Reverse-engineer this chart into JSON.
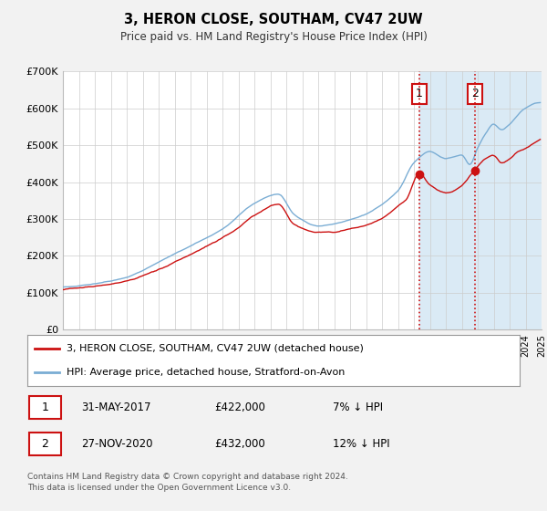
{
  "title": "3, HERON CLOSE, SOUTHAM, CV47 2UW",
  "subtitle": "Price paid vs. HM Land Registry's House Price Index (HPI)",
  "ylim": [
    0,
    700000
  ],
  "yticks": [
    0,
    100000,
    200000,
    300000,
    400000,
    500000,
    600000,
    700000
  ],
  "ytick_labels": [
    "£0",
    "£100K",
    "£200K",
    "£300K",
    "£400K",
    "£500K",
    "£600K",
    "£700K"
  ],
  "hpi_color": "#7aadd4",
  "price_color": "#cc1111",
  "event1_year": 2017.37,
  "event2_year": 2020.9,
  "event1_price": 422000,
  "event2_price": 432000,
  "legend1": "3, HERON CLOSE, SOUTHAM, CV47 2UW (detached house)",
  "legend2": "HPI: Average price, detached house, Stratford-on-Avon",
  "annotation1_date": "31-MAY-2017",
  "annotation1_price": "£422,000",
  "annotation1_hpi": "7% ↓ HPI",
  "annotation2_date": "27-NOV-2020",
  "annotation2_price": "£432,000",
  "annotation2_hpi": "12% ↓ HPI",
  "footnote": "Contains HM Land Registry data © Crown copyright and database right 2024.\nThis data is licensed under the Open Government Licence v3.0.",
  "bg_color": "#f2f2f2",
  "plot_bg": "#ffffff",
  "shaded_region_color": "#daeaf5"
}
